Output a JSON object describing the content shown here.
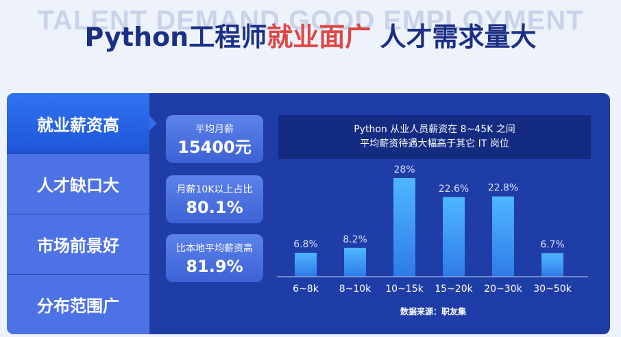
{
  "background_word": "TALENT DEMAND GOOD EMPLOYMENT",
  "headline": {
    "part1": "Python工程师",
    "part2": "就业面广",
    "part3": " 人才需求量大"
  },
  "sidebar": {
    "items": [
      {
        "label": "就业薪资高",
        "active": true
      },
      {
        "label": "人才缺口大",
        "active": false
      },
      {
        "label": "市场前景好",
        "active": false
      },
      {
        "label": "分布范围广",
        "active": false
      }
    ]
  },
  "stats": [
    {
      "label": "平均月薪",
      "value": "15400元"
    },
    {
      "label": "月薪10K以上占比",
      "value": "80.1%"
    },
    {
      "label": "比本地平均薪资高",
      "value": "81.9%"
    }
  ],
  "note": {
    "line1": "Python 从业人员薪资在 8~45K 之间",
    "line2": "平均薪资待遇大幅高于其它 IT 岗位"
  },
  "source": "数据来源：职友集",
  "colors": {
    "accent_red": "#e04545",
    "title_blue": "#1c2f86",
    "bar_top": "#4fb6ff",
    "bar_bottom": "#2f7be8"
  },
  "chart_data": {
    "type": "bar",
    "categories": [
      "6~8k",
      "8~10k",
      "10~15k",
      "15~20k",
      "20~30k",
      "30~50k"
    ],
    "values": [
      6.8,
      8.2,
      28,
      22.6,
      22.8,
      6.7
    ],
    "data_labels": [
      "6.8%",
      "8.2%",
      "28%",
      "22.6%",
      "22.8%",
      "6.7%"
    ],
    "ylim": [
      0,
      30
    ],
    "grid": false
  }
}
